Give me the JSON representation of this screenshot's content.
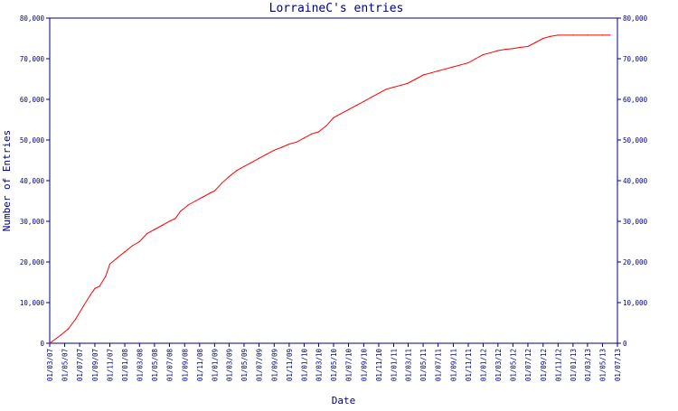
{
  "chart_data": {
    "type": "line",
    "title": "LorraineC's entries",
    "xlabel": "Date",
    "ylabel": "Number of Entries",
    "ylim": [
      0,
      80000
    ],
    "xlim": [
      "2007-03-01",
      "2013-07-01"
    ],
    "grid": false,
    "y_ticks": [
      "0",
      "10,000",
      "20,000",
      "30,000",
      "40,000",
      "50,000",
      "60,000",
      "70,000",
      "80,000"
    ],
    "y_tick_values": [
      0,
      10000,
      20000,
      30000,
      40000,
      50000,
      60000,
      70000,
      80000
    ],
    "x_ticks": [
      "01/03/07",
      "01/05/07",
      "01/07/07",
      "01/09/07",
      "01/11/07",
      "01/01/08",
      "01/03/08",
      "01/05/08",
      "01/07/08",
      "01/09/08",
      "01/11/08",
      "01/01/09",
      "01/03/09",
      "01/05/09",
      "01/07/09",
      "01/09/09",
      "01/11/09",
      "01/01/10",
      "01/03/10",
      "01/05/10",
      "01/07/10",
      "01/09/10",
      "01/11/10",
      "01/01/11",
      "01/03/11",
      "01/05/11",
      "01/07/11",
      "01/09/11",
      "01/11/11",
      "01/01/12",
      "01/03/12",
      "01/05/12",
      "01/07/12",
      "01/09/12",
      "01/11/12",
      "01/01/13",
      "01/03/13",
      "01/05/13",
      "01/07/13"
    ],
    "series": [
      {
        "color": "#ff0000",
        "points": [
          [
            "2007-03-01",
            0
          ],
          [
            "2007-04-15",
            2000
          ],
          [
            "2007-05-15",
            3500
          ],
          [
            "2007-06-15",
            6000
          ],
          [
            "2007-07-15",
            9000
          ],
          [
            "2007-08-15",
            12000
          ],
          [
            "2007-09-01",
            13500
          ],
          [
            "2007-09-20",
            14000
          ],
          [
            "2007-10-15",
            16500
          ],
          [
            "2007-11-01",
            19500
          ],
          [
            "2007-12-01",
            21000
          ],
          [
            "2008-01-01",
            22500
          ],
          [
            "2008-02-01",
            24000
          ],
          [
            "2008-03-01",
            25000
          ],
          [
            "2008-04-01",
            27000
          ],
          [
            "2008-05-01",
            28000
          ],
          [
            "2008-06-01",
            29000
          ],
          [
            "2008-07-01",
            30000
          ],
          [
            "2008-07-25",
            30700
          ],
          [
            "2008-08-15",
            32500
          ],
          [
            "2008-09-15",
            34000
          ],
          [
            "2008-10-15",
            35000
          ],
          [
            "2008-11-15",
            36000
          ],
          [
            "2008-12-15",
            37000
          ],
          [
            "2009-01-01",
            37500
          ],
          [
            "2009-02-01",
            39500
          ],
          [
            "2009-03-01",
            41000
          ],
          [
            "2009-04-01",
            42500
          ],
          [
            "2009-05-01",
            43500
          ],
          [
            "2009-06-01",
            44500
          ],
          [
            "2009-07-01",
            45500
          ],
          [
            "2009-08-01",
            46500
          ],
          [
            "2009-09-01",
            47500
          ],
          [
            "2009-10-01",
            48200
          ],
          [
            "2009-11-01",
            49000
          ],
          [
            "2009-12-01",
            49500
          ],
          [
            "2010-01-01",
            50500
          ],
          [
            "2010-02-01",
            51500
          ],
          [
            "2010-03-01",
            52000
          ],
          [
            "2010-04-01",
            53500
          ],
          [
            "2010-05-01",
            55500
          ],
          [
            "2010-06-01",
            56500
          ],
          [
            "2010-07-01",
            57500
          ],
          [
            "2010-08-01",
            58500
          ],
          [
            "2010-09-01",
            59500
          ],
          [
            "2010-10-01",
            60500
          ],
          [
            "2010-11-01",
            61500
          ],
          [
            "2010-12-01",
            62500
          ],
          [
            "2011-01-01",
            63000
          ],
          [
            "2011-02-01",
            63500
          ],
          [
            "2011-03-01",
            64000
          ],
          [
            "2011-04-01",
            65000
          ],
          [
            "2011-05-01",
            66000
          ],
          [
            "2011-06-01",
            66500
          ],
          [
            "2011-07-01",
            67000
          ],
          [
            "2011-08-01",
            67500
          ],
          [
            "2011-09-01",
            68000
          ],
          [
            "2011-10-01",
            68500
          ],
          [
            "2011-11-01",
            69000
          ],
          [
            "2011-12-01",
            70000
          ],
          [
            "2012-01-01",
            71000
          ],
          [
            "2012-02-01",
            71500
          ],
          [
            "2012-03-01",
            72000
          ],
          [
            "2012-04-01",
            72300
          ],
          [
            "2012-05-01",
            72500
          ],
          [
            "2012-06-01",
            72800
          ],
          [
            "2012-07-01",
            73000
          ],
          [
            "2012-08-01",
            74000
          ],
          [
            "2012-09-01",
            75000
          ],
          [
            "2012-10-01",
            75500
          ],
          [
            "2012-11-01",
            75800
          ],
          [
            "2013-01-01",
            75800
          ],
          [
            "2013-03-01",
            75800
          ],
          [
            "2013-05-01",
            75800
          ],
          [
            "2013-06-01",
            75800
          ]
        ]
      }
    ]
  }
}
